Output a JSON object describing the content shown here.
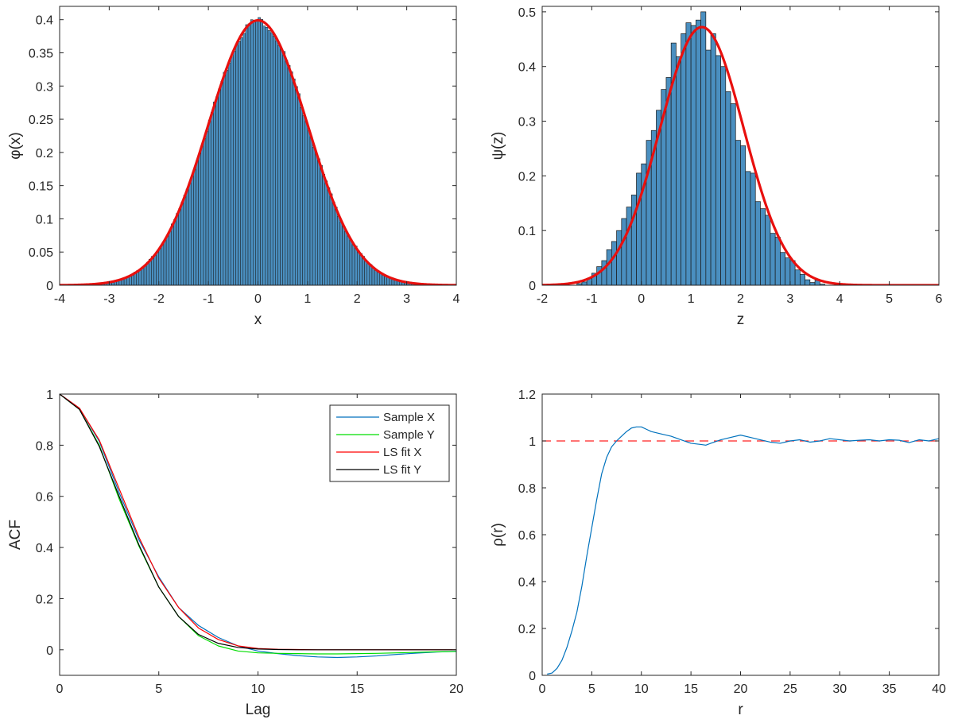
{
  "colors": {
    "hist_fill": "#4a8fc0",
    "hist_edge": "#1a1a1a",
    "fit_red": "#e8100e",
    "axis": "#262626",
    "acf_sample_x": "#0072bd",
    "acf_sample_y": "#00dd00",
    "acf_ls_x": "#ff0000",
    "acf_ls_y": "#000000",
    "rho_line": "#0072bd",
    "rho_ref": "#ff2020"
  },
  "chart_data": [
    {
      "id": "phi",
      "type": "bar",
      "subtype": "histogram-with-pdf-fit",
      "title": "",
      "xlabel": "x",
      "ylabel": "φ(x)",
      "xlim": [
        -4,
        4
      ],
      "ylim": [
        0,
        0.42
      ],
      "xticks": [
        -4,
        -3,
        -2,
        -1,
        0,
        1,
        2,
        3,
        4
      ],
      "xtick_labels": [
        "-4",
        "-3",
        "-2",
        "-1",
        "0",
        "1",
        "2",
        "3",
        "4"
      ],
      "yticks": [
        0,
        0.05,
        0.1,
        0.15,
        0.2,
        0.25,
        0.3,
        0.35,
        0.4
      ],
      "ytick_labels": [
        "0",
        "0.05",
        "0.1",
        "0.15",
        "0.2",
        "0.25",
        "0.3",
        "0.35",
        "0.4"
      ],
      "histogram": {
        "x_start": -4,
        "bin_width": 0.05,
        "bins": 160,
        "distribution": "standard normal, dense sample"
      },
      "fit": {
        "name": "normal pdf",
        "mean": 0,
        "sd": 1,
        "peak": 0.399
      }
    },
    {
      "id": "psi",
      "type": "bar",
      "subtype": "histogram-with-pdf-fit",
      "title": "",
      "xlabel": "z",
      "ylabel": "ψ(z)",
      "xlim": [
        -2,
        6
      ],
      "ylim": [
        0,
        0.51
      ],
      "xticks": [
        -2,
        -1,
        0,
        1,
        2,
        3,
        4,
        5,
        6
      ],
      "xtick_labels": [
        "-2",
        "-1",
        "0",
        "1",
        "2",
        "3",
        "4",
        "5",
        "6"
      ],
      "yticks": [
        0,
        0.1,
        0.2,
        0.3,
        0.4,
        0.5
      ],
      "ytick_labels": [
        "0",
        "0.1",
        "0.2",
        "0.3",
        "0.4",
        "0.5"
      ],
      "histogram": {
        "x_start": -1.3,
        "bin_width": 0.1,
        "values": [
          0.003,
          0.006,
          0.012,
          0.022,
          0.034,
          0.045,
          0.065,
          0.08,
          0.1,
          0.122,
          0.143,
          0.165,
          0.205,
          0.222,
          0.265,
          0.283,
          0.32,
          0.358,
          0.38,
          0.443,
          0.418,
          0.46,
          0.48,
          0.475,
          0.485,
          0.5,
          0.43,
          0.46,
          0.42,
          0.4,
          0.354,
          0.332,
          0.265,
          0.255,
          0.208,
          0.205,
          0.153,
          0.14,
          0.128,
          0.095,
          0.088,
          0.06,
          0.05,
          0.045,
          0.028,
          0.02,
          0.01,
          0.005,
          0.009,
          0.002
        ]
      },
      "fit": {
        "name": "normal pdf",
        "mean": 1.22,
        "sd": 0.845,
        "peak": 0.472
      }
    },
    {
      "id": "acf",
      "type": "line",
      "title": "",
      "xlabel": "Lag",
      "ylabel": "ACF",
      "xlim": [
        0,
        20
      ],
      "ylim": [
        -0.1,
        1
      ],
      "xticks": [
        0,
        5,
        10,
        15,
        20
      ],
      "xtick_labels": [
        "0",
        "5",
        "10",
        "15",
        "20"
      ],
      "yticks": [
        0,
        0.2,
        0.4,
        0.6,
        0.8,
        1
      ],
      "ytick_labels": [
        "0",
        "0.2",
        "0.4",
        "0.6",
        "0.8",
        "1"
      ],
      "legend": "top-right",
      "series": [
        {
          "name": "Sample X",
          "color_key": "acf_sample_x",
          "x": [
            0,
            1,
            2,
            3,
            4,
            5,
            6,
            7,
            8,
            9,
            10,
            11,
            12,
            13,
            14,
            15,
            16,
            17,
            18,
            19,
            20
          ],
          "values": [
            1,
            0.945,
            0.815,
            0.615,
            0.43,
            0.285,
            0.165,
            0.095,
            0.048,
            0.015,
            -0.005,
            -0.015,
            -0.023,
            -0.028,
            -0.03,
            -0.028,
            -0.024,
            -0.018,
            -0.013,
            -0.009,
            -0.006
          ]
        },
        {
          "name": "Sample Y",
          "color_key": "acf_sample_y",
          "x": [
            0,
            1,
            2,
            3,
            4,
            5,
            6,
            7,
            8,
            9,
            10,
            11,
            12,
            13,
            14,
            15,
            16,
            17,
            18,
            19,
            20
          ],
          "values": [
            1,
            0.94,
            0.8,
            0.59,
            0.405,
            0.245,
            0.13,
            0.055,
            0.015,
            -0.005,
            -0.012,
            -0.014,
            -0.015,
            -0.016,
            -0.016,
            -0.015,
            -0.014,
            -0.012,
            -0.01,
            -0.008,
            -0.007
          ]
        },
        {
          "name": "LS fit X",
          "color_key": "acf_ls_x",
          "x": [
            0,
            1,
            2,
            3,
            4,
            5,
            6,
            7,
            8,
            9,
            10,
            11,
            12,
            13,
            14,
            15,
            16,
            17,
            18,
            19,
            20
          ],
          "values": [
            1,
            0.945,
            0.82,
            0.63,
            0.44,
            0.28,
            0.165,
            0.085,
            0.04,
            0.015,
            0.005,
            0.002,
            0.001,
            0,
            0,
            0,
            0,
            0,
            0,
            0,
            0
          ]
        },
        {
          "name": "LS fit Y",
          "color_key": "acf_ls_y",
          "x": [
            0,
            1,
            2,
            3,
            4,
            5,
            6,
            7,
            8,
            9,
            10,
            11,
            12,
            13,
            14,
            15,
            16,
            17,
            18,
            19,
            20
          ],
          "values": [
            1,
            0.94,
            0.795,
            0.6,
            0.41,
            0.245,
            0.13,
            0.06,
            0.025,
            0.009,
            0.003,
            0.001,
            0,
            0,
            0,
            0,
            0,
            0,
            0,
            0,
            0
          ]
        }
      ]
    },
    {
      "id": "rho",
      "type": "line",
      "title": "",
      "xlabel": "r",
      "ylabel": "ρ(r)",
      "xlim": [
        0,
        40
      ],
      "ylim": [
        0,
        1.2
      ],
      "xticks": [
        0,
        5,
        10,
        15,
        20,
        25,
        30,
        35,
        40
      ],
      "xtick_labels": [
        "0",
        "5",
        "10",
        "15",
        "20",
        "25",
        "30",
        "35",
        "40"
      ],
      "yticks": [
        0,
        0.2,
        0.4,
        0.6,
        0.8,
        1,
        1.2
      ],
      "ytick_labels": [
        "0",
        "0.2",
        "0.4",
        "0.6",
        "0.8",
        "1",
        "1.2"
      ],
      "reference_line": {
        "y": 1,
        "style": "dashed",
        "color_key": "rho_ref"
      },
      "series": [
        {
          "name": "rho",
          "color_key": "rho_line",
          "x": [
            0.5,
            1,
            1.5,
            2,
            2.5,
            3,
            3.5,
            4,
            4.5,
            5,
            5.5,
            6,
            6.5,
            7,
            7.5,
            8,
            8.5,
            9,
            9.5,
            10,
            10.5,
            11,
            12,
            13,
            14,
            15,
            16,
            16.5,
            17,
            18,
            19,
            20,
            21,
            22,
            23,
            24,
            25,
            26,
            27,
            28,
            29,
            30,
            31,
            32,
            33,
            34,
            35,
            36,
            37,
            38,
            39,
            40
          ],
          "values": [
            0.005,
            0.01,
            0.03,
            0.065,
            0.12,
            0.19,
            0.27,
            0.38,
            0.51,
            0.63,
            0.75,
            0.86,
            0.93,
            0.975,
            1.0,
            1.02,
            1.04,
            1.055,
            1.06,
            1.06,
            1.05,
            1.04,
            1.03,
            1.02,
            1.005,
            0.99,
            0.985,
            0.982,
            0.99,
            1.005,
            1.015,
            1.025,
            1.015,
            1.005,
            0.995,
            0.99,
            1.0,
            1.005,
            0.995,
            1.0,
            1.01,
            1.005,
            1.0,
            1.003,
            1.005,
            1.0,
            1.005,
            1.003,
            0.993,
            1.005,
            1.0,
            1.01
          ]
        }
      ]
    }
  ]
}
